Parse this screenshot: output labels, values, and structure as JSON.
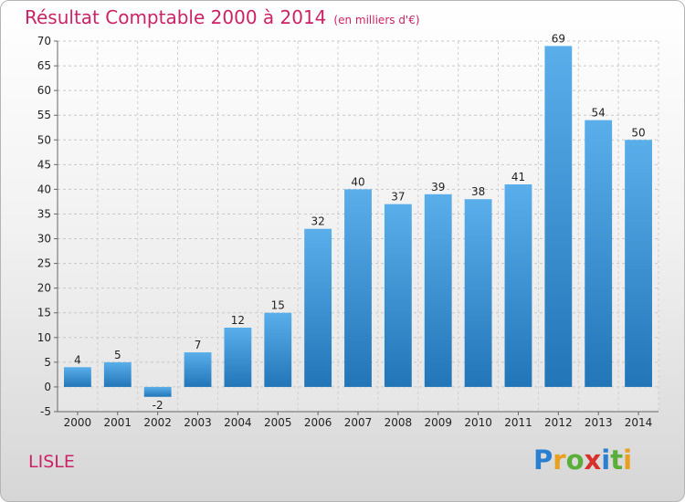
{
  "chart_data": {
    "type": "bar",
    "title": "Résultat Comptable 2000 à 2014",
    "subtitle": "(en milliers d'€)",
    "categories": [
      "2000",
      "2001",
      "2002",
      "2003",
      "2004",
      "2005",
      "2006",
      "2007",
      "2008",
      "2009",
      "2010",
      "2011",
      "2012",
      "2013",
      "2014"
    ],
    "values": [
      4,
      5,
      -2,
      7,
      12,
      15,
      32,
      40,
      37,
      39,
      38,
      41,
      69,
      54,
      50
    ],
    "ylim": [
      -5,
      70
    ],
    "yticks": [
      -5,
      0,
      5,
      10,
      15,
      20,
      25,
      30,
      35,
      40,
      45,
      50,
      55,
      60,
      65,
      70
    ],
    "grid": true,
    "bar_color": "#3a8fd6"
  },
  "footer": {
    "place": "LISLE",
    "logo_letters": [
      "P",
      "r",
      "o",
      "x",
      "i",
      "t",
      "i"
    ],
    "logo_colors": [
      "#2a7fd0",
      "#e8a020",
      "#5aae3a",
      "#d8302a",
      "#2a7fd0",
      "#5aae3a",
      "#e8a020"
    ]
  },
  "colors": {
    "title": "#cc2266"
  }
}
